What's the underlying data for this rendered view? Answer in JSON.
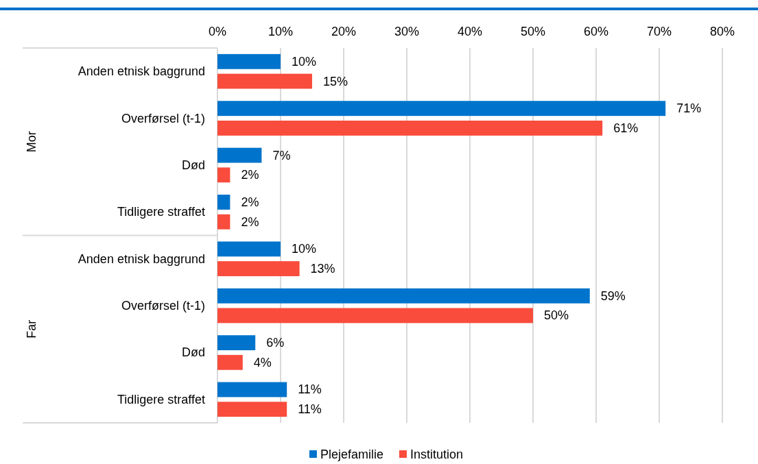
{
  "chart_data": {
    "type": "bar",
    "orientation": "horizontal",
    "categories": [
      "Anden etnisk baggrund",
      "Overførsel (t-1)",
      "Død",
      "Tidligere straffet",
      "Anden etnisk baggrund",
      "Overførsel (t-1)",
      "Død",
      "Tidligere straffet"
    ],
    "series": [
      {
        "name": "Plejefamilie",
        "color": "#0074cc",
        "values": [
          10,
          71,
          7,
          2,
          10,
          59,
          6,
          11
        ],
        "value_labels": [
          "10%",
          "71%",
          "7%",
          "2%",
          "10%",
          "59%",
          "6%",
          "11%"
        ]
      },
      {
        "name": "Institution",
        "color": "#f94c3c",
        "values": [
          15,
          61,
          2,
          2,
          13,
          50,
          4,
          11
        ],
        "value_labels": [
          "15%",
          "61%",
          "2%",
          "2%",
          "13%",
          "50%",
          "4%",
          "11%"
        ]
      }
    ],
    "xlim": [
      0,
      80
    ],
    "xticks": [
      {
        "value": 0,
        "label": "0%"
      },
      {
        "value": 10,
        "label": "10%"
      },
      {
        "value": 20,
        "label": "20%"
      },
      {
        "value": 30,
        "label": "30%"
      },
      {
        "value": 40,
        "label": "40%"
      },
      {
        "value": 50,
        "label": "50%"
      },
      {
        "value": 60,
        "label": "60%"
      },
      {
        "value": 70,
        "label": "70%"
      },
      {
        "value": 80,
        "label": "80%"
      }
    ],
    "annotations": [
      "Mor",
      "Far"
    ],
    "grid": "x",
    "legend": "bottom"
  }
}
